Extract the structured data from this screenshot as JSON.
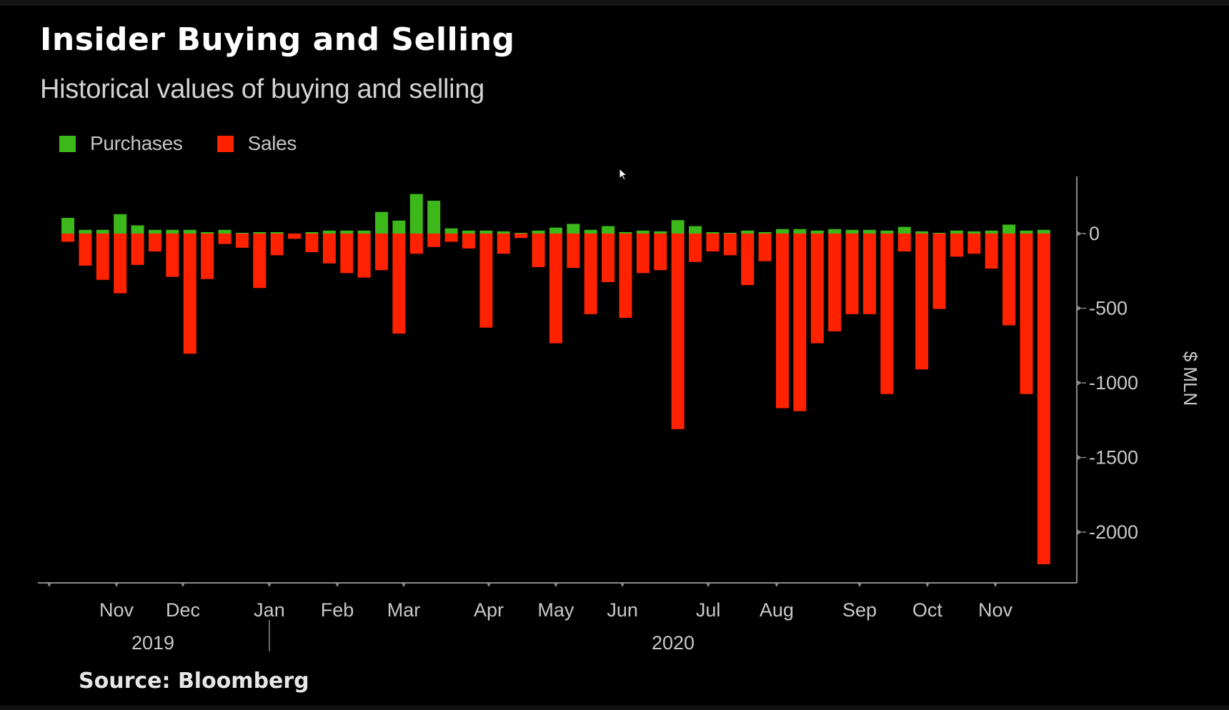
{
  "chart_data": {
    "type": "bar",
    "stacked": true,
    "title": "Insider Buying and Selling",
    "subtitle": "Historical values of buying and selling",
    "source": "Source: Bloomberg",
    "xlabel": "",
    "ylabel": "$ MLN",
    "ylim": [
      -2340,
      380
    ],
    "yticks": [
      0,
      -500,
      -1000,
      -1500,
      -2000
    ],
    "ytick_labels": [
      "0",
      "-500",
      "-1000",
      "-1500",
      "-2000"
    ],
    "x_month_labels": [
      "Nov",
      "Dec",
      "Jan",
      "Feb",
      "Mar",
      "Apr",
      "May",
      "Jun",
      "Jul",
      "Aug",
      "Sep",
      "Oct",
      "Nov"
    ],
    "x_year_labels": [
      "2019",
      "2020"
    ],
    "grid": false,
    "legend_position": "top-left",
    "series": [
      {
        "name": "Purchases",
        "color": "#3cb81a",
        "values": [
          105,
          25,
          25,
          130,
          55,
          25,
          25,
          25,
          10,
          25,
          5,
          10,
          10,
          0,
          10,
          20,
          20,
          20,
          145,
          87,
          265,
          220,
          35,
          20,
          20,
          15,
          5,
          20,
          40,
          65,
          25,
          50,
          10,
          20,
          15,
          90,
          50,
          10,
          5,
          20,
          10,
          30,
          30,
          20,
          30,
          25,
          25,
          20,
          45,
          15,
          5,
          20,
          15,
          20,
          60,
          20,
          25
        ]
      },
      {
        "name": "Sales",
        "color": "#ff2200",
        "values": [
          -55,
          -215,
          -310,
          -400,
          -210,
          -120,
          -290,
          -805,
          -305,
          -70,
          -95,
          -365,
          -145,
          -35,
          -125,
          -200,
          -265,
          -295,
          -245,
          -670,
          -135,
          -90,
          -55,
          -100,
          -630,
          -135,
          -30,
          -225,
          -735,
          -230,
          -540,
          -325,
          -565,
          -265,
          -245,
          -1310,
          -190,
          -120,
          -145,
          -345,
          -185,
          -1170,
          -1190,
          -735,
          -655,
          -540,
          -540,
          -1075,
          -120,
          -910,
          -505,
          -155,
          -135,
          -235,
          -615,
          -1075,
          -2215
        ]
      }
    ]
  },
  "colors": {
    "background": "#000000",
    "axis": "#8a8a8a",
    "text": "#c8c8c8"
  }
}
